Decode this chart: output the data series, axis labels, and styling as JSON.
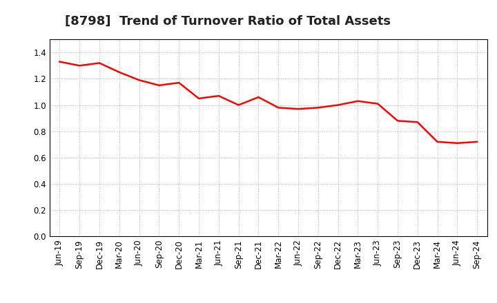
{
  "title": "[8798]  Trend of Turnover Ratio of Total Assets",
  "labels": [
    "Jun-19",
    "Sep-19",
    "Dec-19",
    "Mar-20",
    "Jun-20",
    "Sep-20",
    "Dec-20",
    "Mar-21",
    "Jun-21",
    "Sep-21",
    "Dec-21",
    "Mar-22",
    "Jun-22",
    "Sep-22",
    "Dec-22",
    "Mar-23",
    "Jun-23",
    "Sep-23",
    "Dec-23",
    "Mar-24",
    "Jun-24",
    "Sep-24"
  ],
  "values": [
    1.33,
    1.3,
    1.32,
    1.25,
    1.19,
    1.15,
    1.17,
    1.05,
    1.07,
    1.0,
    1.06,
    0.98,
    0.97,
    0.98,
    1.0,
    1.03,
    1.01,
    0.88,
    0.87,
    0.72,
    0.71,
    0.72
  ],
  "line_color": "#FF0000",
  "line_width": 1.8,
  "ylim": [
    0.0,
    1.5
  ],
  "yticks": [
    0.0,
    0.2,
    0.4,
    0.6,
    0.8,
    1.0,
    1.2,
    1.4
  ],
  "background_color": "#ffffff",
  "plot_bg_color": "#ffffff",
  "grid_color": "#aaaaaa",
  "title_fontsize": 13,
  "tick_fontsize": 8.5
}
